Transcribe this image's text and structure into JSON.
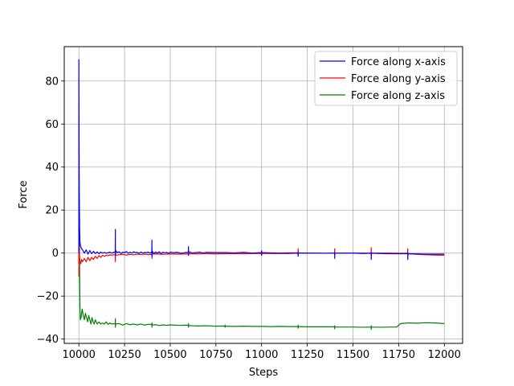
{
  "chart_data": {
    "type": "line",
    "title": "",
    "xlabel": "Steps",
    "ylabel": "Force",
    "xlim": [
      9920,
      12100
    ],
    "ylim": [
      -42,
      96
    ],
    "grid": true,
    "legend_position": "top-right",
    "x_ticks": [
      10000,
      10250,
      10500,
      10750,
      11000,
      11250,
      11500,
      11750,
      12000
    ],
    "y_ticks": [
      -40,
      -20,
      0,
      20,
      40,
      60,
      80
    ],
    "series": [
      {
        "name": "Force along x-axis",
        "color": "#0000ff",
        "x": [
          10000,
          10000,
          10001,
          10002,
          10004,
          10006,
          10010,
          10015,
          10020,
          10030,
          10040,
          10050,
          10060,
          10070,
          10080,
          10090,
          10100,
          10110,
          10120,
          10130,
          10140,
          10150,
          10160,
          10170,
          10180,
          10190,
          10199,
          10200,
          10200,
          10201,
          10210,
          10220,
          10230,
          10240,
          10250,
          10260,
          10270,
          10280,
          10290,
          10300,
          10310,
          10320,
          10330,
          10340,
          10350,
          10360,
          10370,
          10380,
          10390,
          10399,
          10400,
          10400,
          10401,
          10410,
          10420,
          10430,
          10440,
          10450,
          10460,
          10470,
          10480,
          10490,
          10500,
          10520,
          10540,
          10560,
          10580,
          10599,
          10600,
          10600,
          10601,
          10620,
          10640,
          10660,
          10680,
          10700,
          10750,
          10800,
          10850,
          10900,
          10950,
          10999,
          11000,
          11000,
          11001,
          11050,
          11100,
          11150,
          11199,
          11200,
          11200,
          11201,
          11250,
          11300,
          11350,
          11399,
          11400,
          11400,
          11401,
          11450,
          11500,
          11550,
          11599,
          11600,
          11600,
          11601,
          11650,
          11700,
          11750,
          11799,
          11800,
          11800,
          11801,
          11850,
          11900,
          11950,
          12000
        ],
        "values": [
          0,
          90,
          60,
          30,
          12,
          5,
          3,
          2,
          1.5,
          0,
          1.5,
          -0.5,
          1.2,
          -0.3,
          0.8,
          -0.2,
          0.5,
          -0.3,
          0.4,
          0,
          0.3,
          -0.1,
          0.2,
          0.4,
          0,
          0.3,
          0.5,
          11,
          -1,
          1.2,
          0.2,
          0.6,
          -0.2,
          0.4,
          0.2,
          0.7,
          -0.1,
          0.4,
          0,
          0.6,
          0.2,
          0.3,
          -0.1,
          0.5,
          0,
          0.3,
          0.2,
          0.4,
          0,
          0.5,
          6,
          -1.5,
          1,
          -0.2,
          0.5,
          0,
          0.6,
          -0.3,
          0.4,
          0.1,
          0.3,
          -0.1,
          0.4,
          0.2,
          0.3,
          -0.1,
          0.2,
          0.3,
          3,
          -1,
          0.6,
          0.1,
          0.2,
          0.4,
          0.1,
          0.3,
          0.2,
          0.2,
          0.1,
          0.3,
          0,
          0.2,
          1,
          -1,
          0.2,
          0.1,
          0,
          0.1,
          0.1,
          0.3,
          -1.5,
          0.1,
          0,
          0,
          -0.1,
          0,
          0.2,
          -2.5,
          0,
          -0.1,
          0,
          -0.2,
          -0.1,
          0.3,
          -3,
          -0.1,
          -0.2,
          -0.3,
          -0.3,
          -0.3,
          0,
          -3,
          -0.3,
          -0.4,
          -0.5,
          -0.5,
          -0.5
        ]
      },
      {
        "name": "Force along y-axis",
        "color": "#ff0000",
        "x": [
          10000,
          10001,
          10002,
          10004,
          10006,
          10010,
          10015,
          10020,
          10030,
          10040,
          10050,
          10060,
          10070,
          10080,
          10090,
          10100,
          10110,
          10120,
          10130,
          10140,
          10150,
          10160,
          10170,
          10180,
          10190,
          10199,
          10200,
          10200,
          10201,
          10220,
          10240,
          10260,
          10280,
          10300,
          10320,
          10340,
          10360,
          10380,
          10399,
          10400,
          10400,
          10401,
          10430,
          10460,
          10500,
          10550,
          10599,
          10600,
          10600,
          10601,
          10650,
          10700,
          10750,
          10800,
          10850,
          10900,
          10950,
          10999,
          11000,
          11000,
          11001,
          11050,
          11100,
          11150,
          11199,
          11200,
          11200,
          11201,
          11250,
          11300,
          11350,
          11399,
          11400,
          11400,
          11401,
          11450,
          11500,
          11550,
          11599,
          11600,
          11600,
          11601,
          11650,
          11700,
          11750,
          11799,
          11800,
          11800,
          11801,
          11850,
          11900,
          11950,
          12000
        ],
        "values": [
          -11,
          5,
          3,
          -2,
          -4,
          -5,
          -3,
          -4,
          -2.5,
          -4,
          -2,
          -3.5,
          -2,
          -3,
          -1.5,
          -2.5,
          -1.2,
          -2,
          -1,
          -1.5,
          -1,
          -1.2,
          -0.8,
          -1,
          -0.8,
          -0.8,
          -4,
          1.5,
          -1,
          -0.8,
          -0.6,
          -0.9,
          -0.6,
          -0.8,
          -0.5,
          -0.7,
          -0.5,
          -0.7,
          -0.6,
          -2.5,
          1,
          -0.5,
          -0.4,
          -0.6,
          -0.4,
          -0.5,
          -0.4,
          -1,
          0.5,
          -0.3,
          -0.4,
          -0.3,
          -0.4,
          -0.3,
          -0.3,
          -0.3,
          -0.2,
          -0.2,
          1,
          -1,
          -0.2,
          -0.2,
          -0.2,
          -0.2,
          -0.1,
          2,
          -1,
          -0.1,
          -0.1,
          -0.1,
          -0.1,
          0,
          2,
          -1,
          0,
          0,
          0,
          0,
          0,
          2.5,
          -1,
          0,
          0,
          0,
          -0.1,
          -0.1,
          2,
          -1,
          -0.3,
          -0.6,
          -0.8,
          -0.9,
          -1
        ]
      },
      {
        "name": "Force along z-axis",
        "color": "#008000",
        "x": [
          10000,
          10001,
          10002,
          10004,
          10006,
          10008,
          10012,
          10018,
          10024,
          10030,
          10036,
          10042,
          10048,
          10054,
          10060,
          10066,
          10072,
          10078,
          10084,
          10090,
          10100,
          10110,
          10120,
          10130,
          10140,
          10150,
          10160,
          10170,
          10180,
          10190,
          10199,
          10200,
          10200,
          10201,
          10220,
          10240,
          10260,
          10280,
          10300,
          10320,
          10340,
          10360,
          10380,
          10399,
          10400,
          10400,
          10401,
          10420,
          10440,
          10460,
          10480,
          10500,
          10550,
          10599,
          10600,
          10600,
          10601,
          10650,
          10700,
          10750,
          10799,
          10800,
          10800,
          10801,
          10850,
          10900,
          10950,
          11000,
          11050,
          11100,
          11150,
          11199,
          11200,
          11200,
          11201,
          11250,
          11300,
          11350,
          11399,
          11400,
          11400,
          11401,
          11450,
          11500,
          11550,
          11599,
          11600,
          11600,
          11601,
          11650,
          11700,
          11740,
          11760,
          11800,
          11850,
          11900,
          11950,
          12000
        ],
        "values": [
          -5,
          28,
          15,
          -8,
          -25,
          -31,
          -30,
          -26,
          -29,
          -31,
          -28,
          -30,
          -32,
          -29,
          -31,
          -33,
          -30,
          -32,
          -33,
          -31,
          -33,
          -32,
          -33,
          -32.5,
          -33,
          -32,
          -33.2,
          -32.5,
          -33,
          -32.8,
          -33,
          -30.5,
          -34.5,
          -33,
          -32.8,
          -33.5,
          -32.8,
          -33.3,
          -33,
          -33.4,
          -33,
          -33.5,
          -33.1,
          -33.2,
          -34.5,
          -32.5,
          -33.5,
          -33.3,
          -33.7,
          -33.4,
          -33.6,
          -33.4,
          -33.6,
          -33.5,
          -34.5,
          -32.8,
          -33.7,
          -33.9,
          -33.8,
          -34,
          -33.9,
          -34.5,
          -33.5,
          -34,
          -34.1,
          -34,
          -34.1,
          -34.1,
          -34.2,
          -34.1,
          -34.2,
          -34.2,
          -35,
          -33.5,
          -34.2,
          -34.3,
          -34.3,
          -34.3,
          -34.3,
          -35.2,
          -33.8,
          -34.4,
          -34.4,
          -34.4,
          -34.5,
          -34.4,
          -35.5,
          -33.8,
          -34.4,
          -34.5,
          -34.4,
          -34.4,
          -32.8,
          -32.5,
          -32.6,
          -32.4,
          -32.5,
          -32.8
        ]
      }
    ]
  }
}
